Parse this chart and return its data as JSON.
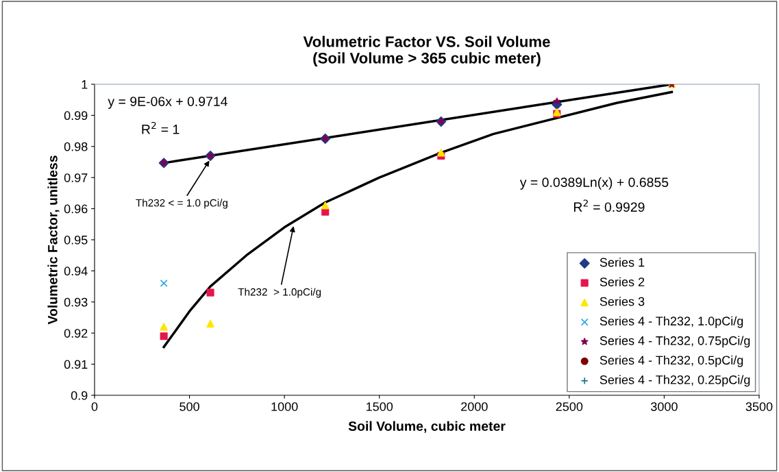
{
  "chart_data": {
    "type": "scatter",
    "title": "Volumetric Factor VS. Soil Volume\n(Soil Volume > 365 cubic meter)",
    "xlabel": "Soil Volume, cubic meter",
    "ylabel": "Volumetric Factor, unitless",
    "x": [
      365,
      610,
      1215,
      1825,
      2435,
      3040
    ],
    "series": [
      {
        "name": "Series 1",
        "color": "#1f3c88",
        "marker": "diamond",
        "values": [
          0.9747,
          0.977,
          0.9825,
          0.988,
          0.9935,
          null
        ]
      },
      {
        "name": "Series 2",
        "color": "#e8144c",
        "marker": "square",
        "values": [
          0.919,
          0.933,
          0.959,
          0.977,
          0.9905,
          null
        ]
      },
      {
        "name": "Series 3",
        "color": "#ffe600",
        "marker": "triangle",
        "values": [
          0.922,
          0.923,
          0.961,
          0.978,
          0.991,
          1.0
        ]
      },
      {
        "name": "Series 4 - Th232, 1.0pCi/g",
        "color": "#33aadd",
        "marker": "cross",
        "values": [
          0.936,
          null,
          null,
          null,
          null,
          null
        ]
      },
      {
        "name": "Series 4 - Th232, 0.75pCi/g",
        "color": "#800050",
        "marker": "star",
        "values": [
          0.9747,
          0.977,
          0.9825,
          0.988,
          0.9945,
          1.0
        ]
      },
      {
        "name": "Series 4 - Th232, 0.5pCi/g",
        "color": "#800000",
        "marker": "circle",
        "values": [
          null,
          null,
          null,
          null,
          null,
          null
        ]
      },
      {
        "name": "Series 4 - Th232, 0.25pCi/g",
        "color": "#1b7a8c",
        "marker": "plus",
        "values": [
          null,
          null,
          null,
          null,
          null,
          null
        ]
      },
      {
        "type": "line",
        "color": "#000000",
        "x": [
          365,
          3040
        ],
        "values": [
          0.9747,
          1.0
        ]
      },
      {
        "type": "line",
        "color": "#000000",
        "x": [
          365,
          500,
          610,
          800,
          1000,
          1215,
          1500,
          1825,
          2100,
          2750,
          3040
        ],
        "values": [
          0.9155,
          0.927,
          0.935,
          0.945,
          0.954,
          0.962,
          0.97,
          0.978,
          0.984,
          0.994,
          0.9975
        ]
      }
    ],
    "xlim": [
      0,
      3500
    ],
    "xticks": [
      0,
      500,
      1000,
      1500,
      2000,
      2500,
      3000,
      3500
    ],
    "ylim": [
      0.9,
      1
    ],
    "yticks": [
      0.9,
      0.91,
      0.92,
      0.93,
      0.94,
      0.95,
      0.96,
      0.97,
      0.98,
      0.99,
      1
    ],
    "annotations": [
      "y = 9E-06x + 0.9714",
      "R$^{2}$ = 1",
      "y = 0.0389Ln(x) + 0.6855",
      "R$^{2}$ = 0.9929",
      {
        "text": "Th232 < = 1.0 pCi/g",
        "x": 610,
        "y": 0.976
      },
      {
        "text": "Th232  > 1.0pCi/g",
        "x": 1050,
        "y": 0.955
      }
    ],
    "grid": false,
    "legend": "bottom right"
  }
}
